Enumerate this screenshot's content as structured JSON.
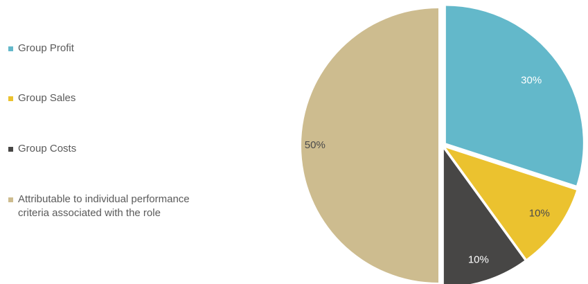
{
  "chart_data": {
    "type": "pie",
    "title": "",
    "categories": [
      "Group Profit",
      "Group Sales",
      "Group Costs",
      "Attributable to individual performance criteria associated with the role"
    ],
    "values": [
      30,
      10,
      10,
      50
    ],
    "data_labels": [
      "30%",
      "10%",
      "10%",
      "50%"
    ],
    "colors": [
      "#63b8ca",
      "#ebc22f",
      "#474645",
      "#cdbc8f"
    ],
    "label_colors": [
      "#ffffff",
      "#4a4a4a",
      "#ffffff",
      "#4a4a4a"
    ],
    "legend_position": "left"
  }
}
